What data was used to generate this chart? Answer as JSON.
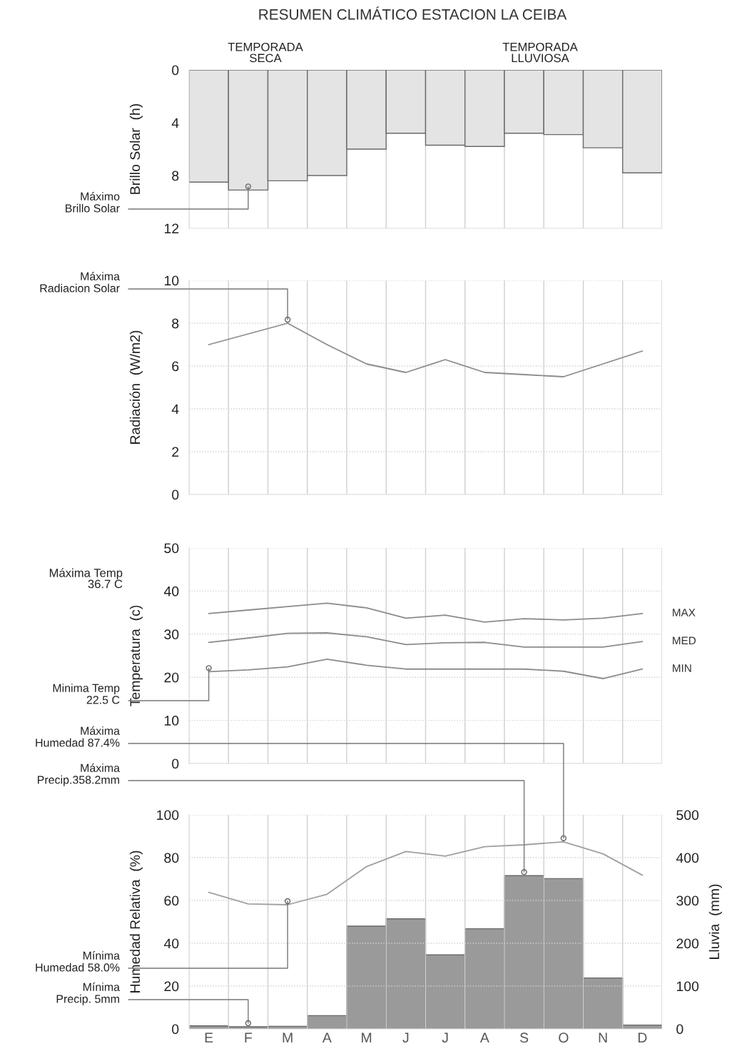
{
  "chart_data": [
    {
      "type": "bar",
      "title": "RESUMEN CLIMÁTICO ESTACION LA CEIBA",
      "ylabel": "Brillo Solar  (h)",
      "categories": [
        "E",
        "F",
        "M",
        "A",
        "M",
        "J",
        "J",
        "A",
        "S",
        "O",
        "N",
        "D"
      ],
      "series": [
        {
          "color": "#e4e4e4",
          "values": [
            8.5,
            9.1,
            8.4,
            8.0,
            6.0,
            4.8,
            5.7,
            5.8,
            4.8,
            4.9,
            5.9,
            7.8
          ]
        }
      ],
      "ylim": [
        12,
        0
      ],
      "yticks": [
        0,
        4,
        8,
        12
      ],
      "grid": "x",
      "tick_labels": "y",
      "annotations": [
        "TEMPORADA\nSECA",
        "TEMPORADA\nLLUVIOSA",
        {
          "text": "Máximo\nBrillo Solar",
          "x": "F",
          "y": 9.1
        }
      ]
    },
    {
      "type": "line",
      "ylabel": "Radiación  (W/m2)",
      "categories": [
        "E",
        "F",
        "M",
        "A",
        "M",
        "J",
        "J",
        "A",
        "S",
        "O",
        "N",
        "D"
      ],
      "series": [
        {
          "color": "#8c8c8c",
          "values": [
            7.0,
            7.5,
            8.0,
            7.0,
            6.1,
            5.7,
            6.3,
            5.7,
            5.6,
            5.5,
            6.1,
            6.7
          ]
        }
      ],
      "ylim": [
        0,
        10
      ],
      "yticks": [
        0,
        2,
        4,
        6,
        8,
        10
      ],
      "grid": true,
      "tick_labels": "y",
      "annotations": [
        {
          "text": "Máxima\nRadiacion Solar",
          "x": "M",
          "y": 8.0
        }
      ]
    },
    {
      "type": "line",
      "ylabel": "Temperatura  (c)",
      "categories": [
        "E",
        "F",
        "M",
        "A",
        "M",
        "J",
        "J",
        "A",
        "S",
        "O",
        "N",
        "D"
      ],
      "series": [
        {
          "name": "MAX",
          "color": "#8c8c8c",
          "values": [
            34.8,
            35.6,
            36.4,
            37.2,
            36.1,
            33.7,
            34.4,
            32.8,
            33.6,
            33.3,
            33.7,
            34.8
          ]
        },
        {
          "name": "MED",
          "color": "#8c8c8c",
          "values": [
            28.1,
            29.1,
            30.2,
            30.3,
            29.4,
            27.6,
            28.0,
            28.1,
            27.0,
            27.0,
            27.0,
            28.3
          ]
        },
        {
          "name": "MIN",
          "color": "#8c8c8c",
          "values": [
            21.3,
            21.7,
            22.4,
            24.2,
            22.8,
            21.9,
            21.9,
            21.9,
            21.9,
            21.4,
            19.7,
            21.9
          ]
        }
      ],
      "ylim": [
        0,
        50
      ],
      "yticks": [
        0,
        10,
        20,
        30,
        40,
        50
      ],
      "grid": true,
      "tick_labels": "y",
      "annotations": [
        "Máxima Temp\n36.7 C",
        {
          "text": "Minima Temp\n22.5 C",
          "x": "E",
          "y": 21.3
        }
      ]
    },
    {
      "type": "bar",
      "ylabel": "Humedad Relativa  (%)",
      "y2label": "Lluvia  (mm)",
      "categories": [
        "E",
        "F",
        "M",
        "A",
        "M",
        "J",
        "J",
        "A",
        "S",
        "O",
        "N",
        "D"
      ],
      "series": [
        {
          "axis": "y2",
          "color": "#9a9a9a",
          "values": [
            7,
            5,
            6,
            31,
            240,
            257,
            173,
            234,
            358,
            351,
            119,
            9
          ]
        },
        {
          "type": "line",
          "color": "#a0a0a0",
          "values": [
            63.8,
            58.4,
            58.0,
            62.9,
            75.8,
            82.9,
            80.7,
            85.1,
            86.0,
            87.4,
            81.8,
            71.8
          ]
        }
      ],
      "ylim": [
        0,
        100
      ],
      "yticks": [
        0,
        20,
        40,
        60,
        80,
        100
      ],
      "y2lim": [
        0,
        500
      ],
      "y2ticks": [
        0,
        100,
        200,
        300,
        400,
        500
      ],
      "grid": true,
      "annotations": [
        {
          "text": "Máxima\nHumedad 87.4%",
          "x": "O",
          "y": 87.4
        },
        "Máxima\nPrecip.358.2mm",
        {
          "text": "Mínima\nHumedad 58.0%",
          "x": "M",
          "y": 58.0
        },
        "Mínima\nPrecip. 5mm"
      ]
    }
  ]
}
